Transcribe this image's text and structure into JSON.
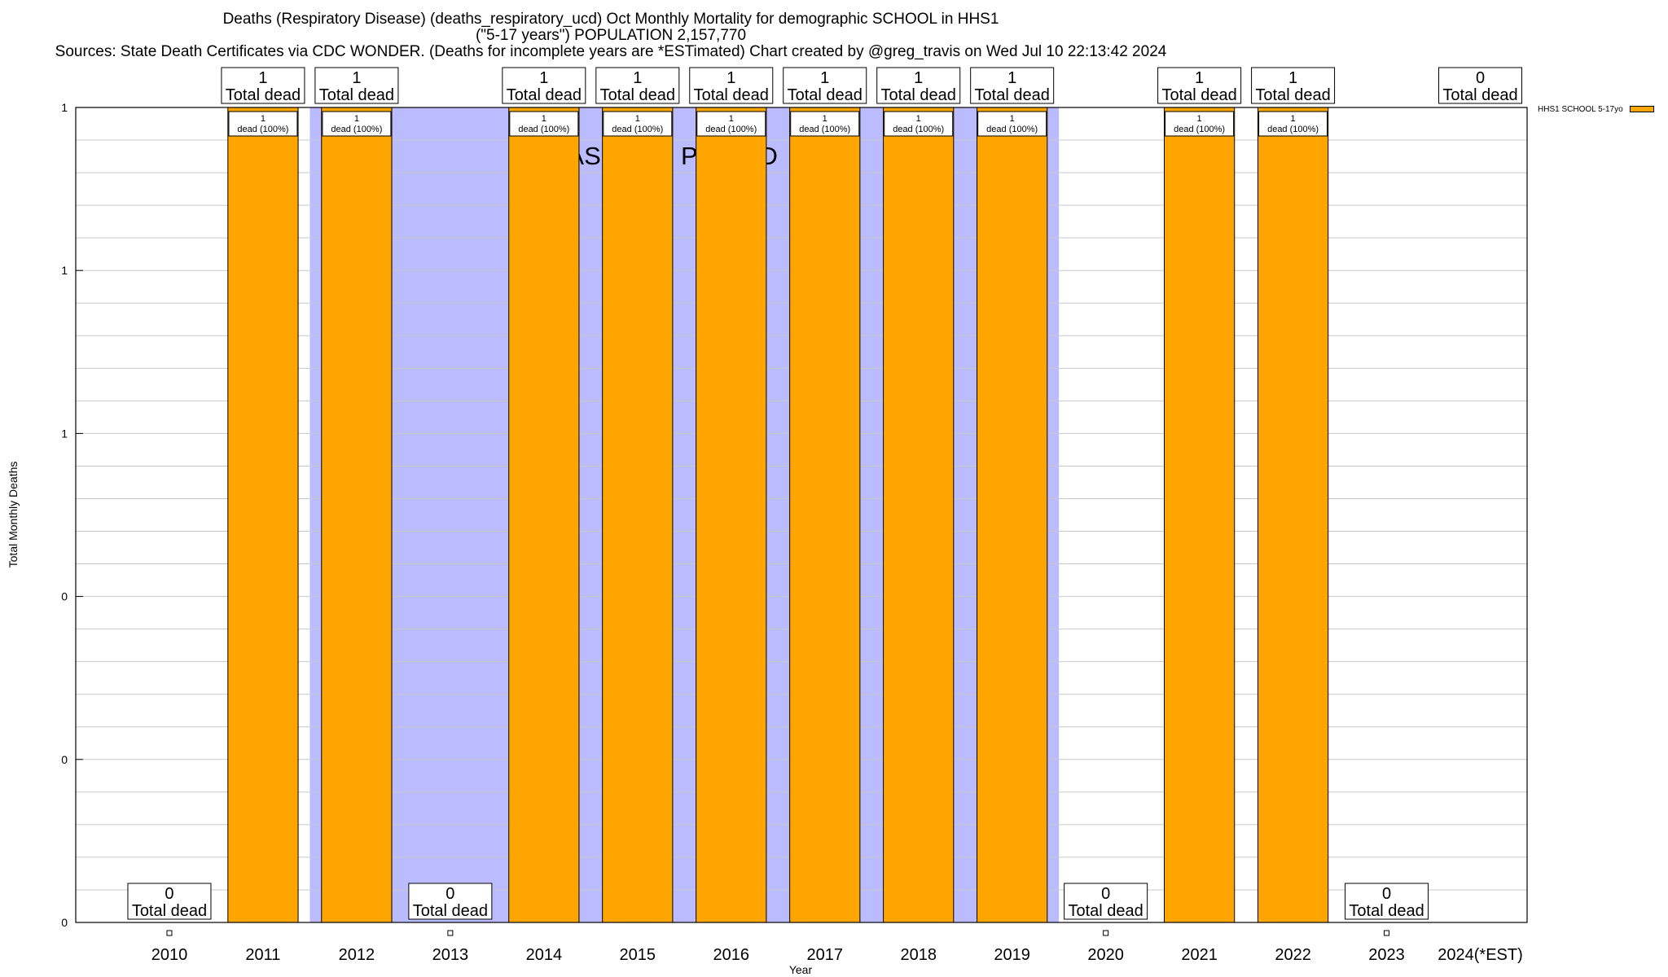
{
  "titles": {
    "line1": "Deaths (Respiratory Disease) (deaths_respiratory_ucd) Oct Monthly Mortality for demographic SCHOOL in HHS1",
    "line2": "(\"5-17 years\") POPULATION 2,157,770",
    "line3": "Sources: State Death Certificates via CDC WONDER. (Deaths for incomplete years are *ESTimated)               Chart created by @greg_travis on Wed Jul 10 22:13:42 2024"
  },
  "chart_data": {
    "type": "bar",
    "xlabel": "Year",
    "ylabel": "Total Monthly Deaths",
    "categories": [
      "2010",
      "2011",
      "2012",
      "2013",
      "2014",
      "2015",
      "2016",
      "2017",
      "2018",
      "2019",
      "2020",
      "2021",
      "2022",
      "2023",
      "2024(*EST)"
    ],
    "series": [
      {
        "name": "HHS1 SCHOOL 5-17yo",
        "color": "#ffa500",
        "values": [
          0,
          1,
          1,
          0,
          1,
          1,
          1,
          1,
          1,
          1,
          0,
          1,
          1,
          0,
          0
        ]
      }
    ],
    "top_labels": [
      "0",
      "1",
      "1",
      "0",
      "1",
      "1",
      "1",
      "1",
      "1",
      "1",
      "0",
      "1",
      "1",
      "0",
      "0"
    ],
    "top_label_suffix": "Total dead",
    "inner_labels": [
      "",
      "1",
      "1",
      "",
      "1",
      "1",
      "1",
      "1",
      "1",
      "1",
      "",
      "1",
      "1",
      "",
      ""
    ],
    "inner_label_suffix": "dead (100%)",
    "y_tick_labels": [
      "0",
      "0",
      "0",
      "1",
      "1",
      "1"
    ],
    "ylim": [
      0,
      1
    ],
    "baseline_period": {
      "label": "BASELINE PERIOD",
      "from": "2012",
      "to": "2019",
      "color": "#bbbbff"
    },
    "grid": true,
    "legend_position": "top-right"
  }
}
